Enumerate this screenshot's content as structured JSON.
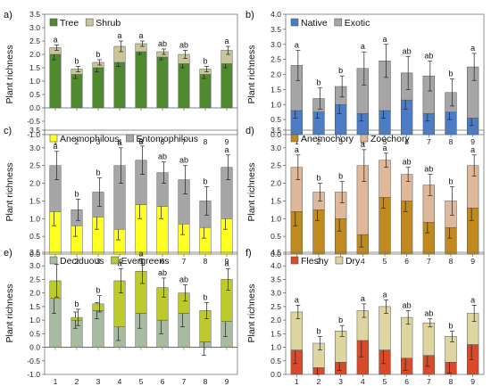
{
  "y_axis_label": "Plant richness",
  "chart_data": [
    {
      "panel": "a)",
      "type": "bar",
      "stacked": true,
      "ylim": [
        -1.0,
        3.5
      ],
      "yticks": [
        "-1.0",
        "-0.5",
        "0.0",
        "0.5",
        "1.0",
        "1.5",
        "2.0",
        "2.5",
        "3.0",
        "3.5"
      ],
      "categories": [
        "1",
        "2",
        "3",
        "4",
        "5",
        "6",
        "7",
        "8",
        "9"
      ],
      "series": [
        {
          "name": "Tree",
          "color": "#4f8a2f",
          "values": [
            2.0,
            1.25,
            1.5,
            1.7,
            2.1,
            1.9,
            1.65,
            1.25,
            1.65
          ],
          "err": [
            0.2,
            0.15,
            0.15,
            0.15,
            0.1,
            0.1,
            0.15,
            0.15,
            0.15
          ]
        },
        {
          "name": "Shrub",
          "color": "#c8c59a",
          "values": [
            0.25,
            0.2,
            0.2,
            0.6,
            0.3,
            0.2,
            0.35,
            0.2,
            0.5
          ],
          "err": [
            0.1,
            0.1,
            0.1,
            0.2,
            0.1,
            0.1,
            0.15,
            0.1,
            0.15
          ]
        }
      ],
      "letters": [
        "a",
        "b",
        "b",
        "a",
        "a",
        "ab",
        "ab",
        "b",
        "a"
      ]
    },
    {
      "panel": "b)",
      "type": "bar",
      "stacked": true,
      "ylim": [
        0.0,
        4.0
      ],
      "yticks": [
        "0.0",
        "0.5",
        "1.0",
        "1.5",
        "2.0",
        "2.5",
        "3.0",
        "3.5",
        "4.0"
      ],
      "categories": [
        "1",
        "2",
        "3",
        "4",
        "5",
        "6",
        "7",
        "8",
        "9"
      ],
      "series": [
        {
          "name": "Native",
          "color": "#4a7cc8",
          "values": [
            0.8,
            0.75,
            1.0,
            0.7,
            0.8,
            1.15,
            0.7,
            0.75,
            0.55
          ],
          "err": [
            0.25,
            0.2,
            0.3,
            0.25,
            0.25,
            0.3,
            0.25,
            0.25,
            0.25
          ]
        },
        {
          "name": "Exotic",
          "color": "#a6a6a6",
          "values": [
            1.5,
            0.45,
            0.6,
            1.5,
            1.65,
            0.9,
            1.25,
            0.65,
            1.7
          ],
          "err": [
            0.5,
            0.35,
            0.35,
            0.55,
            0.55,
            0.55,
            0.5,
            0.45,
            0.45
          ]
        }
      ],
      "letters": [
        "a",
        "b",
        "b",
        "a",
        "a",
        "ab",
        "ab",
        "b",
        "a"
      ]
    },
    {
      "panel": "c)",
      "type": "bar",
      "stacked": true,
      "ylim": [
        0.0,
        3.5
      ],
      "yticks": [
        "0.0",
        "0.5",
        "1.0",
        "1.5",
        "2.0",
        "2.5",
        "3.0",
        "3.5"
      ],
      "categories": [
        "1",
        "2",
        "3",
        "4",
        "5",
        "6",
        "7",
        "8",
        "9"
      ],
      "series": [
        {
          "name": "Anemophilous",
          "color": "#ffff22",
          "values": [
            1.2,
            0.8,
            1.05,
            0.7,
            1.4,
            1.35,
            0.85,
            0.75,
            1.0
          ],
          "err": [
            0.4,
            0.3,
            0.35,
            0.3,
            0.4,
            0.35,
            0.3,
            0.3,
            0.3
          ]
        },
        {
          "name": "Entomophilous",
          "color": "#a6a6a6",
          "values": [
            1.3,
            0.45,
            0.7,
            1.8,
            1.25,
            0.95,
            1.25,
            0.75,
            1.45
          ],
          "err": [
            0.4,
            0.3,
            0.4,
            0.5,
            0.4,
            0.3,
            0.4,
            0.4,
            0.35
          ]
        }
      ],
      "letters": [
        "a",
        "b",
        "b",
        "a",
        "a",
        "ab",
        "ab",
        "b",
        "a"
      ]
    },
    {
      "panel": "d)",
      "type": "bar",
      "stacked": true,
      "ylim": [
        0.0,
        3.5
      ],
      "yticks": [
        "0.0",
        "0.5",
        "1.0",
        "1.5",
        "2.0",
        "2.5",
        "3.0",
        "3.5"
      ],
      "categories": [
        "1",
        "2",
        "3",
        "4",
        "5",
        "6",
        "7",
        "8",
        "9"
      ],
      "series": [
        {
          "name": "Anemochory",
          "color": "#c08a1e",
          "values": [
            1.2,
            1.25,
            1.0,
            0.55,
            1.6,
            1.5,
            0.9,
            0.75,
            1.3
          ],
          "err": [
            0.4,
            0.3,
            0.35,
            0.35,
            0.3,
            0.3,
            0.3,
            0.3,
            0.35
          ]
        },
        {
          "name": "Zoochory",
          "color": "#ddb89a",
          "values": [
            1.25,
            0.5,
            0.75,
            1.95,
            1.05,
            0.75,
            1.05,
            0.75,
            1.2
          ],
          "err": [
            0.35,
            0.25,
            0.3,
            0.45,
            0.2,
            0.2,
            0.3,
            0.4,
            0.3
          ]
        }
      ],
      "letters": [
        "a",
        "b",
        "b",
        "a",
        "a",
        "ab",
        "ab",
        "b",
        "a"
      ]
    },
    {
      "panel": "e)",
      "type": "bar",
      "stacked": true,
      "ylim": [
        -1.0,
        3.5
      ],
      "yticks": [
        "-1.0",
        "-0.5",
        "0.0",
        "0.5",
        "1.0",
        "1.5",
        "2.0",
        "2.5",
        "3.0",
        "3.5"
      ],
      "categories": [
        "1",
        "2",
        "3",
        "4",
        "5",
        "6",
        "7",
        "8",
        "9"
      ],
      "series": [
        {
          "name": "Deciduous",
          "color": "#a8bba0",
          "values": [
            1.8,
            1.0,
            1.35,
            0.75,
            1.25,
            1.0,
            1.25,
            0.2,
            0.95
          ],
          "err": [
            0.55,
            0.3,
            0.3,
            0.5,
            0.55,
            0.5,
            0.5,
            0.5,
            0.55
          ]
        },
        {
          "name": "Evergreens",
          "color": "#bcca2a",
          "values": [
            0.65,
            0.1,
            0.25,
            1.7,
            1.55,
            1.2,
            0.75,
            1.15,
            1.55
          ],
          "err": [
            0.6,
            0.3,
            0.3,
            0.45,
            0.45,
            0.35,
            0.3,
            0.3,
            0.4
          ]
        }
      ],
      "letters": [
        "a",
        "b",
        "b",
        "a",
        "a",
        "ab",
        "ab",
        "b",
        "a"
      ]
    },
    {
      "panel": "f)",
      "type": "bar",
      "stacked": true,
      "ylim": [
        0.0,
        4.5
      ],
      "yticks": [
        "0.0",
        "0.5",
        "1.0",
        "1.5",
        "2.0",
        "2.5",
        "3.0",
        "3.5",
        "4.0",
        "4.5"
      ],
      "categories": [
        "1",
        "2",
        "3",
        "4",
        "5",
        "6",
        "7",
        "8",
        "9"
      ],
      "series": [
        {
          "name": "Fleshy",
          "color": "#d94a2a",
          "values": [
            0.9,
            0.25,
            0.45,
            1.25,
            0.9,
            0.6,
            0.7,
            0.45,
            1.1
          ],
          "err": [
            0.5,
            0.25,
            0.3,
            0.6,
            0.5,
            0.45,
            0.4,
            0.4,
            0.55
          ]
        },
        {
          "name": "Dry",
          "color": "#ddd6a0",
          "values": [
            1.4,
            0.9,
            1.15,
            1.1,
            1.6,
            1.5,
            1.2,
            0.95,
            1.15
          ],
          "err": [
            0.25,
            0.25,
            0.2,
            0.25,
            0.25,
            0.25,
            0.15,
            0.2,
            0.3
          ]
        }
      ],
      "letters": [
        "a",
        "b",
        "b",
        "a",
        "a",
        "ab",
        "ab",
        "b",
        "a"
      ]
    }
  ]
}
